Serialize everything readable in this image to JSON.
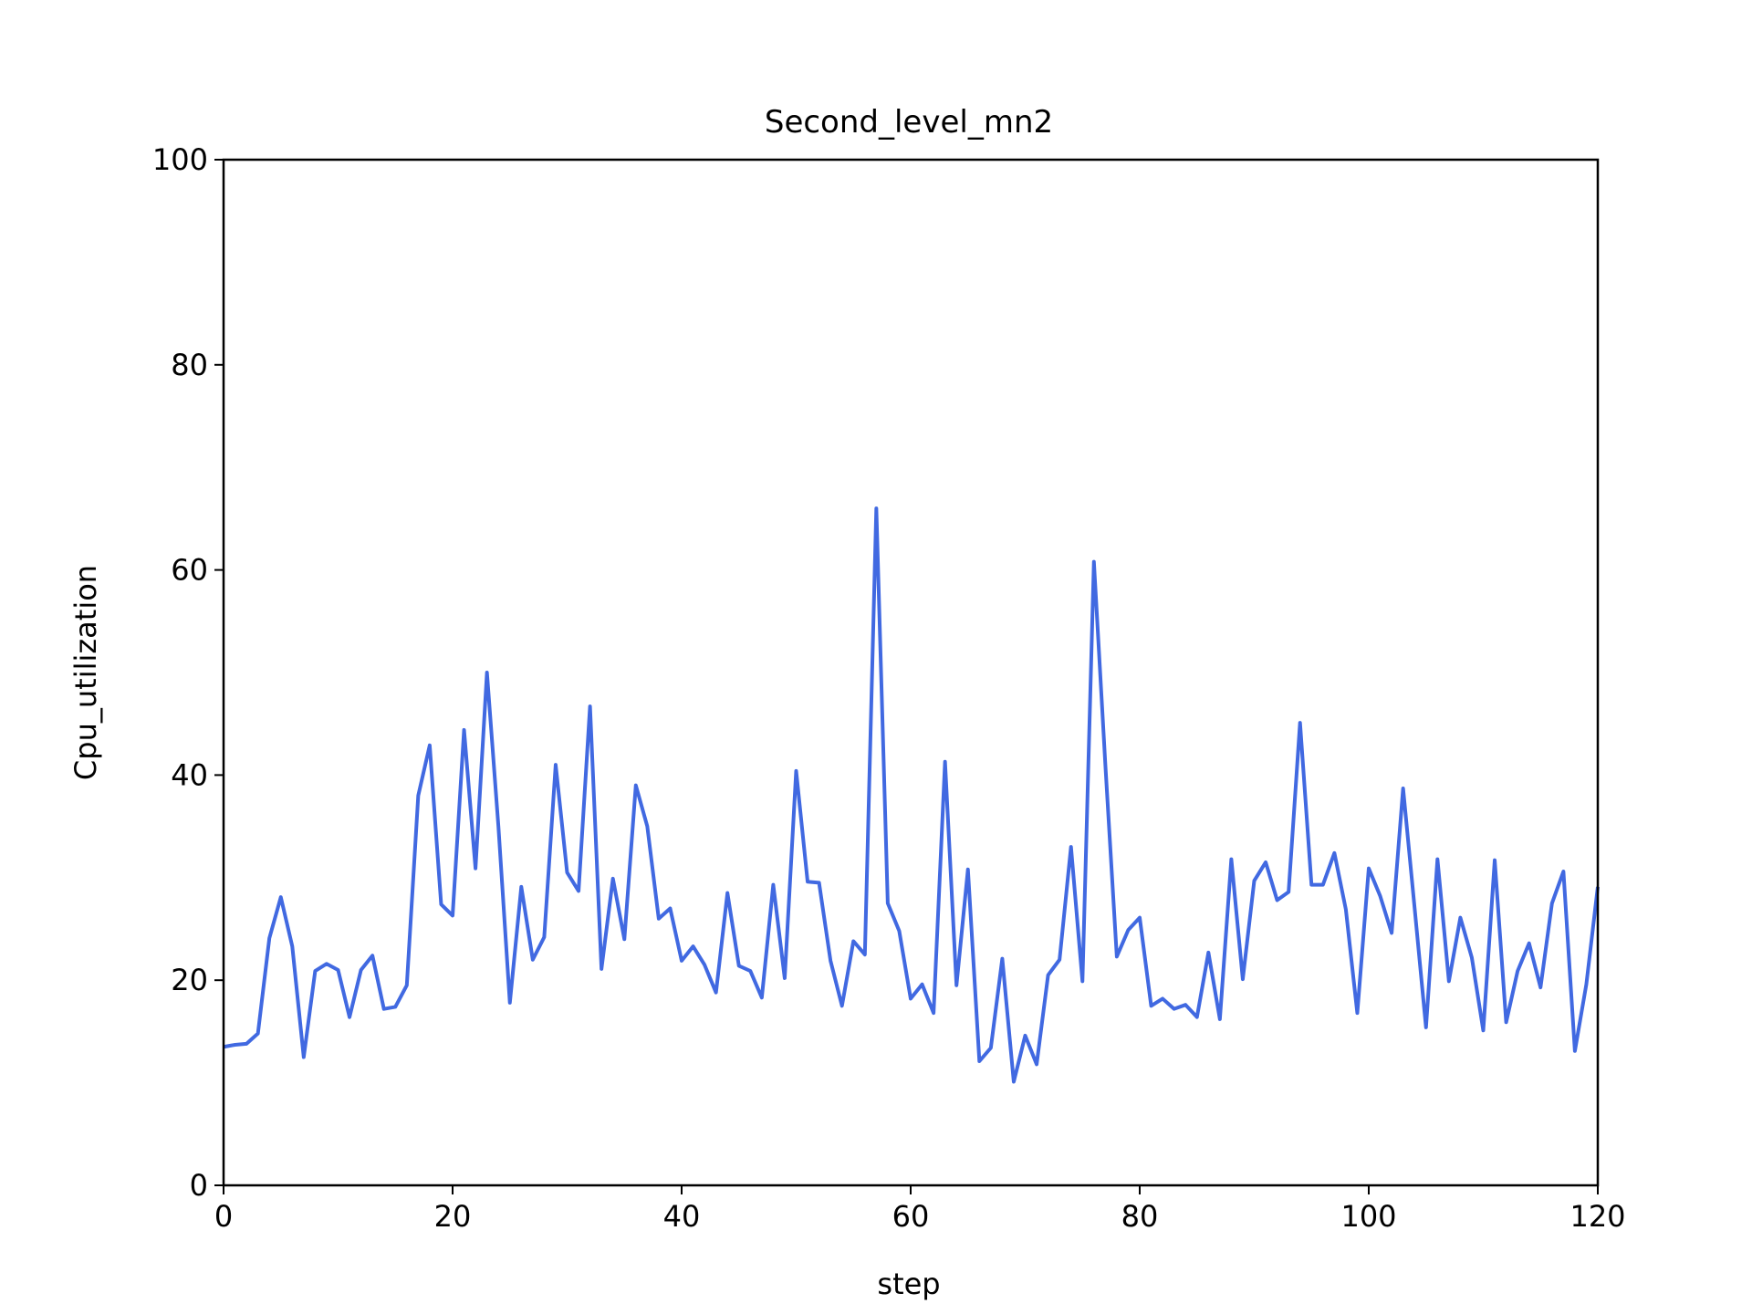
{
  "chart_data": {
    "type": "line",
    "title": "Second_level_mn2",
    "xlabel": "step",
    "ylabel": "Cpu_utilization",
    "xlim": [
      0,
      120
    ],
    "ylim": [
      0,
      100
    ],
    "xticks": [
      "0",
      "20",
      "40",
      "60",
      "80",
      "100",
      "120"
    ],
    "yticks": [
      "0",
      "20",
      "40",
      "60",
      "80",
      "100"
    ],
    "grid": false,
    "line_color": "#4169e1",
    "series": [
      {
        "x": [
          0,
          1,
          2,
          3,
          4,
          5,
          6,
          7,
          8,
          9,
          10,
          11,
          12,
          13,
          14,
          15,
          16,
          17,
          18,
          19,
          20,
          21,
          22,
          23,
          24,
          25,
          26,
          27,
          28,
          29,
          30,
          31,
          32,
          33,
          34,
          35,
          36,
          37,
          38,
          39,
          40,
          41,
          42,
          43,
          44,
          45,
          46,
          47,
          48,
          49,
          50,
          51,
          52,
          53,
          54,
          55,
          56,
          57,
          58,
          59,
          60,
          61,
          62,
          63,
          64,
          65,
          66,
          67,
          68,
          69,
          70,
          71,
          72,
          73,
          74,
          75,
          76,
          77,
          78,
          79,
          80,
          81,
          82,
          83,
          84,
          85,
          86,
          87,
          88,
          89,
          90,
          91,
          92,
          93,
          94,
          95,
          96,
          97,
          98,
          99,
          100,
          101,
          102,
          103,
          104,
          105,
          106,
          107,
          108,
          109,
          110,
          111,
          112,
          113,
          114,
          115,
          116,
          117,
          118,
          119,
          120
        ],
        "values": [
          13.5,
          13.7,
          13.8,
          14.8,
          24.1,
          28.1,
          23.3,
          12.5,
          20.9,
          21.6,
          21,
          16.4,
          21,
          22.4,
          17.2,
          17.4,
          19.5,
          38,
          42.9,
          27.4,
          26.3,
          44.4,
          30.9,
          50,
          35,
          17.8,
          29.1,
          22,
          24.2,
          41,
          30.5,
          28.7,
          46.7,
          21.1,
          29.9,
          24,
          39,
          35,
          26,
          27,
          21.9,
          23.3,
          21.5,
          18.8,
          28.5,
          21.4,
          20.9,
          18.3,
          29.3,
          20.2,
          40.4,
          29.6,
          29.5,
          21.9,
          17.5,
          23.8,
          22.5,
          66,
          27.5,
          24.8,
          18.2,
          19.6,
          16.8,
          41.3,
          19.5,
          30.8,
          12.1,
          13.4,
          22.1,
          10.1,
          14.6,
          11.8,
          20.5,
          22,
          33,
          19.9,
          60.8,
          41,
          22.3,
          24.9,
          26.1,
          17.5,
          18.2,
          17.2,
          17.6,
          16.4,
          22.7,
          16.2,
          31.8,
          20.1,
          29.7,
          31.5,
          27.8,
          28.6,
          45.1,
          29.3,
          29.3,
          32.4,
          26.9,
          16.8,
          30.9,
          28.2,
          24.6,
          38.7,
          27.1,
          15.4,
          31.8,
          19.9,
          26.1,
          22.2,
          15.1,
          31.7,
          15.9,
          20.9,
          23.6,
          19.3,
          27.5,
          30.6,
          13.1,
          19.6,
          29.1
        ]
      }
    ]
  }
}
